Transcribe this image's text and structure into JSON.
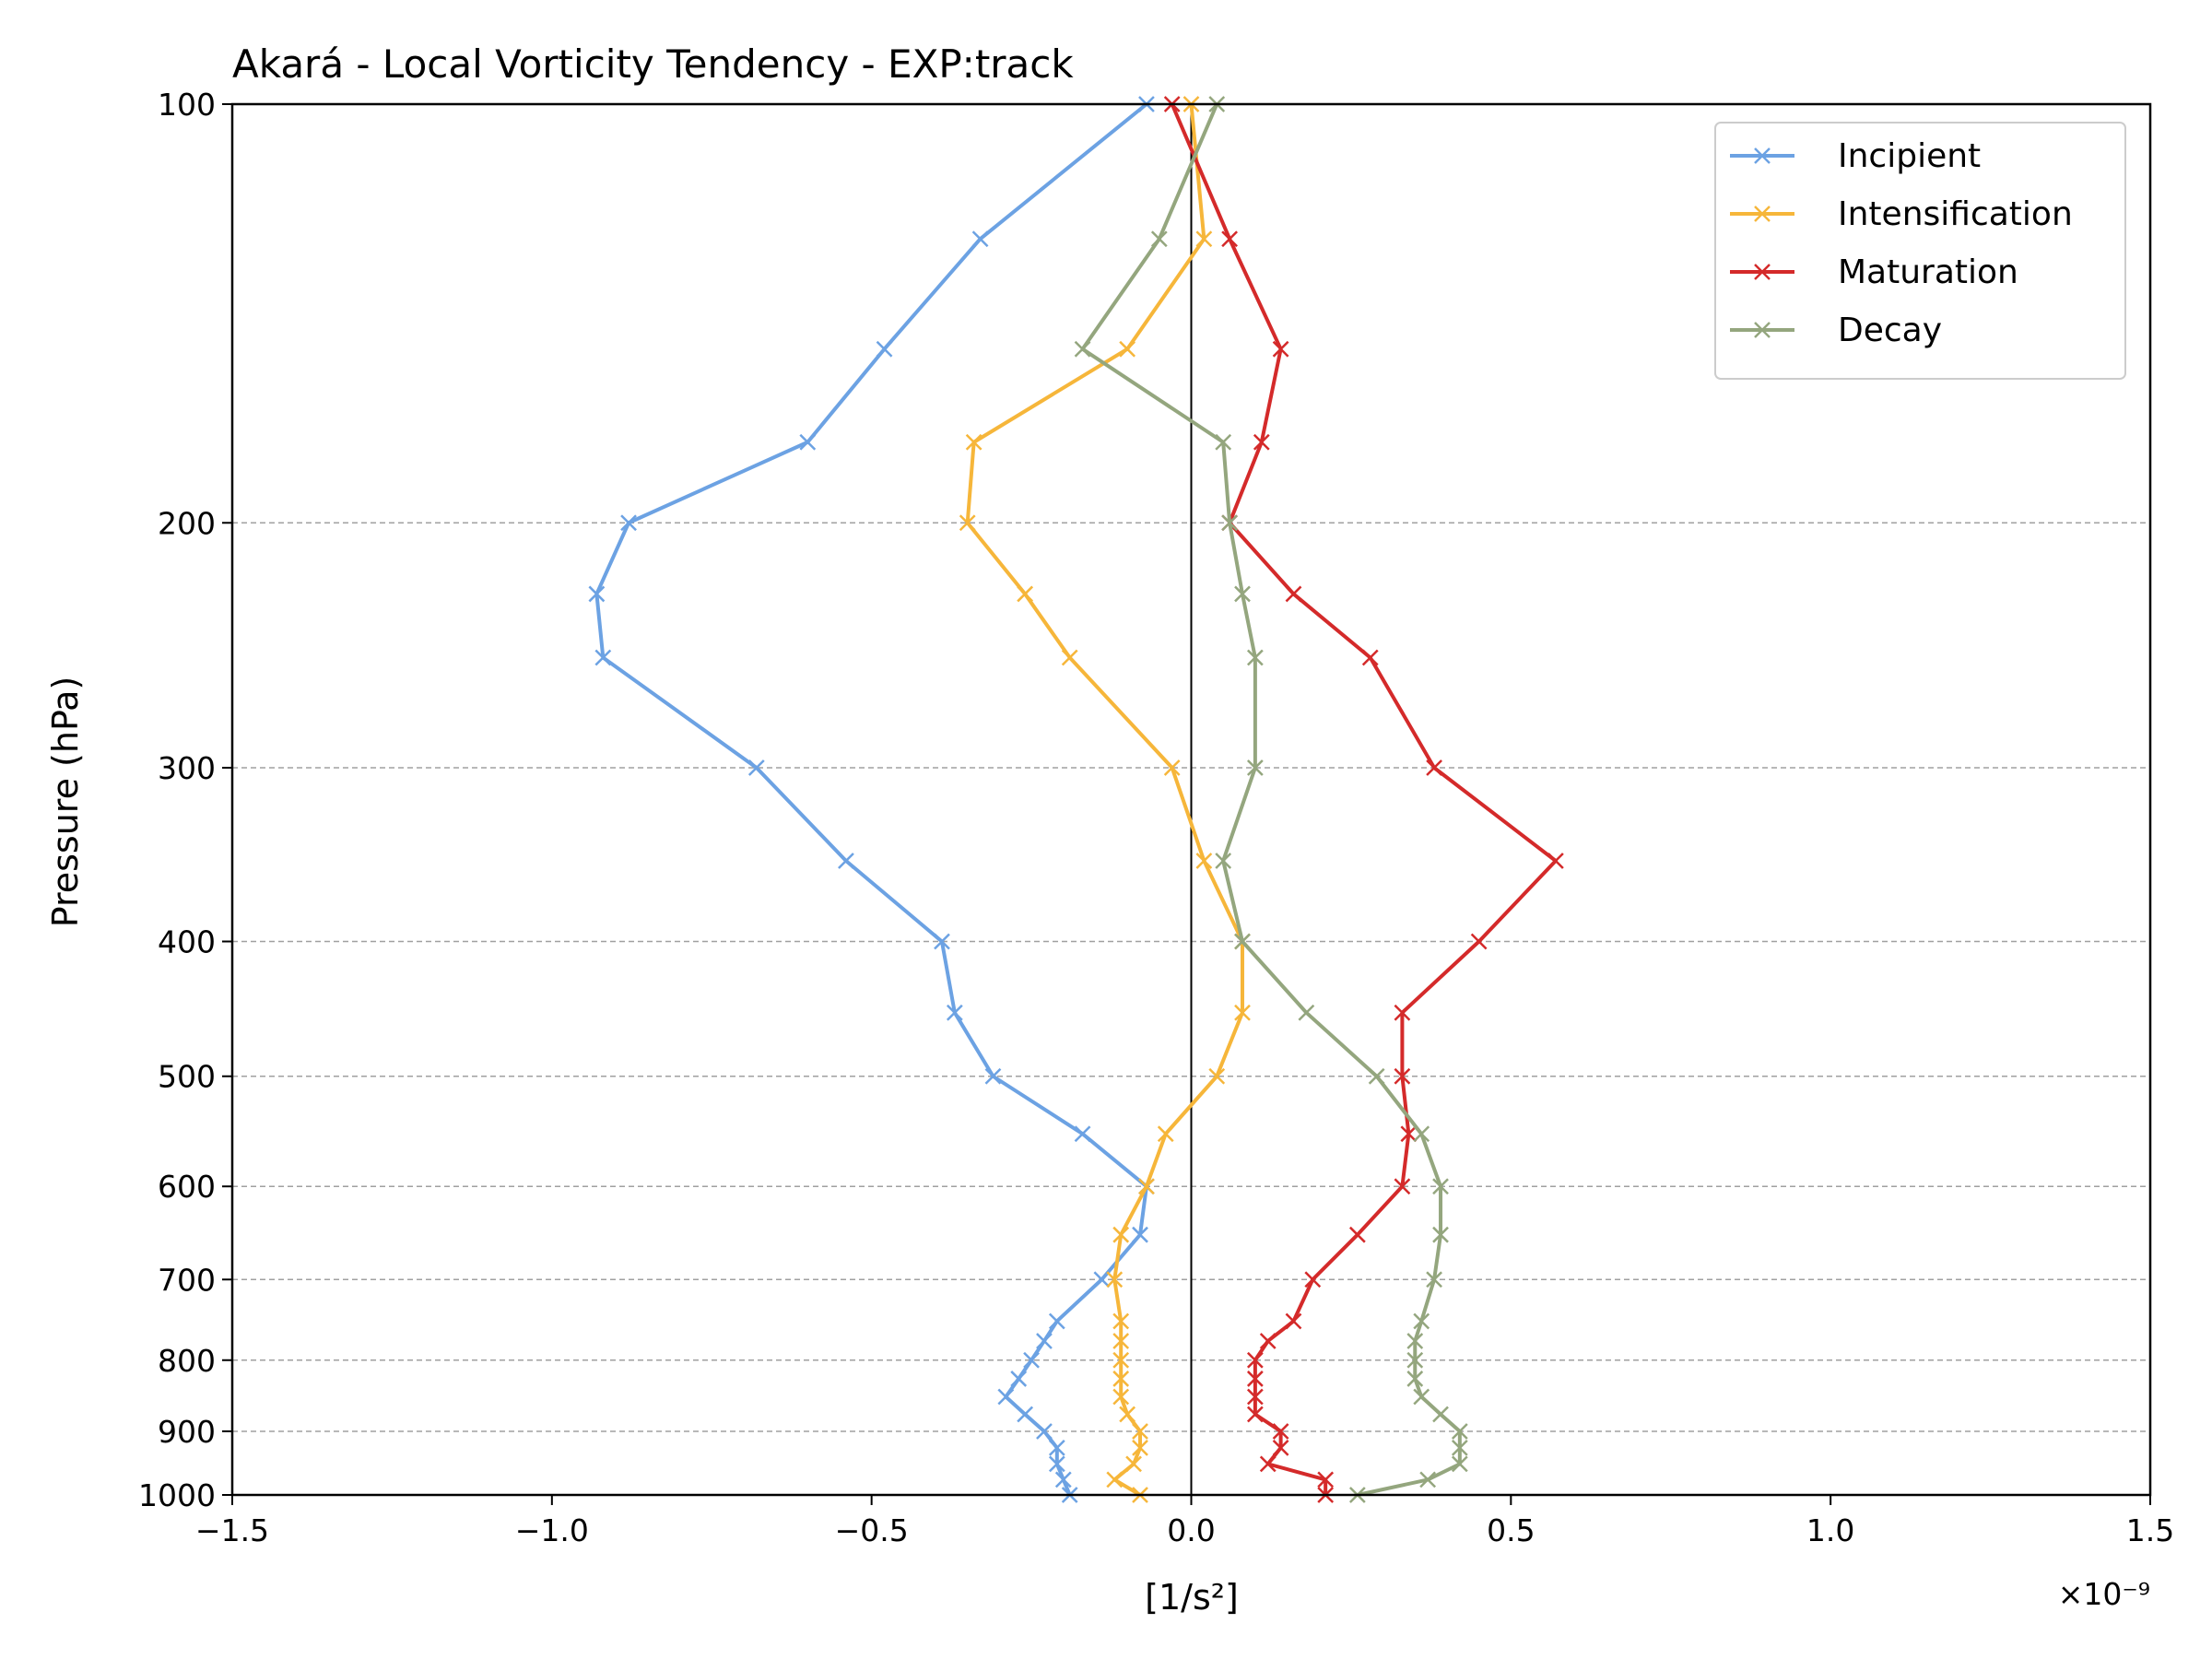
{
  "chart_data": {
    "type": "line",
    "title": "Akará - Local Vorticity Tendency - EXP:track",
    "xlabel": "[1/s²]",
    "ylabel": "Pressure (hPa)",
    "x_offset_text": "×10⁻⁹",
    "xlim": [
      -1.5,
      1.5
    ],
    "ylim": [
      100,
      1000
    ],
    "y_scale": "log",
    "y_inverted": true,
    "x_ticks": [
      {
        "value": -1.5,
        "label": "−1.5"
      },
      {
        "value": -1.0,
        "label": "−1.0"
      },
      {
        "value": -0.5,
        "label": "−0.5"
      },
      {
        "value": 0.0,
        "label": "0.0"
      },
      {
        "value": 0.5,
        "label": "0.5"
      },
      {
        "value": 1.0,
        "label": "1.0"
      },
      {
        "value": 1.5,
        "label": "1.5"
      }
    ],
    "y_ticks": [
      {
        "value": 100,
        "label": "100"
      },
      {
        "value": 200,
        "label": "200"
      },
      {
        "value": 300,
        "label": "300"
      },
      {
        "value": 400,
        "label": "400"
      },
      {
        "value": 500,
        "label": "500"
      },
      {
        "value": 600,
        "label": "600"
      },
      {
        "value": 700,
        "label": "700"
      },
      {
        "value": 800,
        "label": "800"
      },
      {
        "value": 900,
        "label": "900"
      },
      {
        "value": 1000,
        "label": "1000"
      }
    ],
    "grid": "horizontal dashed at y ticks",
    "zero_line": true,
    "legend_position": "top-right",
    "levels": [
      100,
      125,
      150,
      175,
      200,
      225,
      250,
      300,
      350,
      400,
      450,
      500,
      550,
      600,
      650,
      700,
      750,
      775,
      800,
      825,
      850,
      875,
      900,
      925,
      950,
      975,
      1000
    ],
    "series": [
      {
        "name": "Incipient",
        "color": "#6ca2e3",
        "values": [
          -0.07,
          -0.33,
          -0.48,
          -0.6,
          -0.88,
          -0.93,
          -0.92,
          -0.68,
          -0.54,
          -0.39,
          -0.37,
          -0.31,
          -0.17,
          -0.07,
          -0.08,
          -0.14,
          -0.21,
          -0.23,
          -0.25,
          -0.27,
          -0.29,
          -0.26,
          -0.23,
          -0.21,
          -0.21,
          -0.2,
          -0.19
        ]
      },
      {
        "name": "Intensification",
        "color": "#f6b63a",
        "values": [
          0.0,
          0.02,
          -0.1,
          -0.34,
          -0.35,
          -0.26,
          -0.19,
          -0.03,
          0.02,
          0.08,
          0.08,
          0.04,
          -0.04,
          -0.07,
          -0.11,
          -0.12,
          -0.11,
          -0.11,
          -0.11,
          -0.11,
          -0.11,
          -0.1,
          -0.08,
          -0.08,
          -0.09,
          -0.12,
          -0.08
        ]
      },
      {
        "name": "Maturation",
        "color": "#d42a2a",
        "values": [
          -0.03,
          0.06,
          0.14,
          0.11,
          0.06,
          0.16,
          0.28,
          0.38,
          0.57,
          0.45,
          0.33,
          0.33,
          0.34,
          0.33,
          0.26,
          0.19,
          0.16,
          0.12,
          0.1,
          0.1,
          0.1,
          0.1,
          0.14,
          0.14,
          0.12,
          0.21,
          0.21
        ]
      },
      {
        "name": "Decay",
        "color": "#94a67e",
        "values": [
          0.04,
          -0.05,
          -0.17,
          0.05,
          0.06,
          0.08,
          0.1,
          0.1,
          0.05,
          0.08,
          0.18,
          0.29,
          0.36,
          0.39,
          0.39,
          0.38,
          0.36,
          0.35,
          0.35,
          0.35,
          0.36,
          0.39,
          0.42,
          0.42,
          0.42,
          0.37,
          0.26
        ]
      }
    ]
  }
}
